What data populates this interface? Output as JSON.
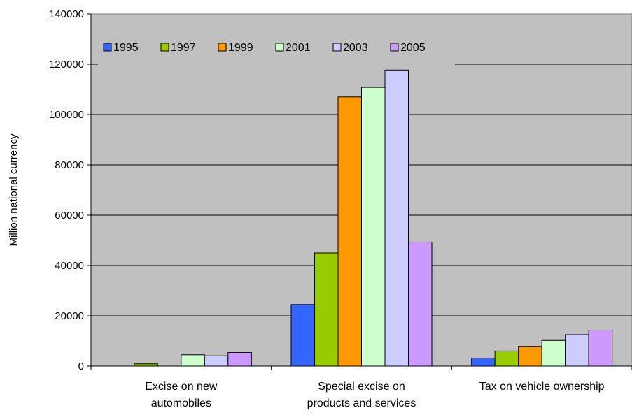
{
  "chart_data": {
    "type": "bar",
    "title": "",
    "xlabel": "",
    "ylabel": "Million national currency",
    "ylim": [
      0,
      140000
    ],
    "yticks": [
      0,
      20000,
      40000,
      60000,
      80000,
      100000,
      120000,
      140000
    ],
    "grid": true,
    "legend_position": "top-left",
    "categories": [
      [
        "Excise on new",
        "automobiles"
      ],
      [
        "Special excise on",
        "products and services"
      ],
      [
        "Tax on vehicle ownership"
      ]
    ],
    "series": [
      {
        "name": "1995",
        "color": "#3366FF",
        "values": [
          0,
          24500,
          3200
        ]
      },
      {
        "name": "1997",
        "color": "#99CC00",
        "values": [
          900,
          45000,
          6000
        ]
      },
      {
        "name": "1999",
        "color": "#FF9900",
        "values": [
          0,
          107000,
          7700
        ]
      },
      {
        "name": "2001",
        "color": "#CCFFCC",
        "values": [
          4500,
          110800,
          10200
        ]
      },
      {
        "name": "2003",
        "color": "#CCCCFF",
        "values": [
          4100,
          117700,
          12500
        ]
      },
      {
        "name": "2005",
        "color": "#CC99FF",
        "values": [
          5400,
          49300,
          14300
        ]
      }
    ],
    "plot_background": "#C0C0C0"
  }
}
